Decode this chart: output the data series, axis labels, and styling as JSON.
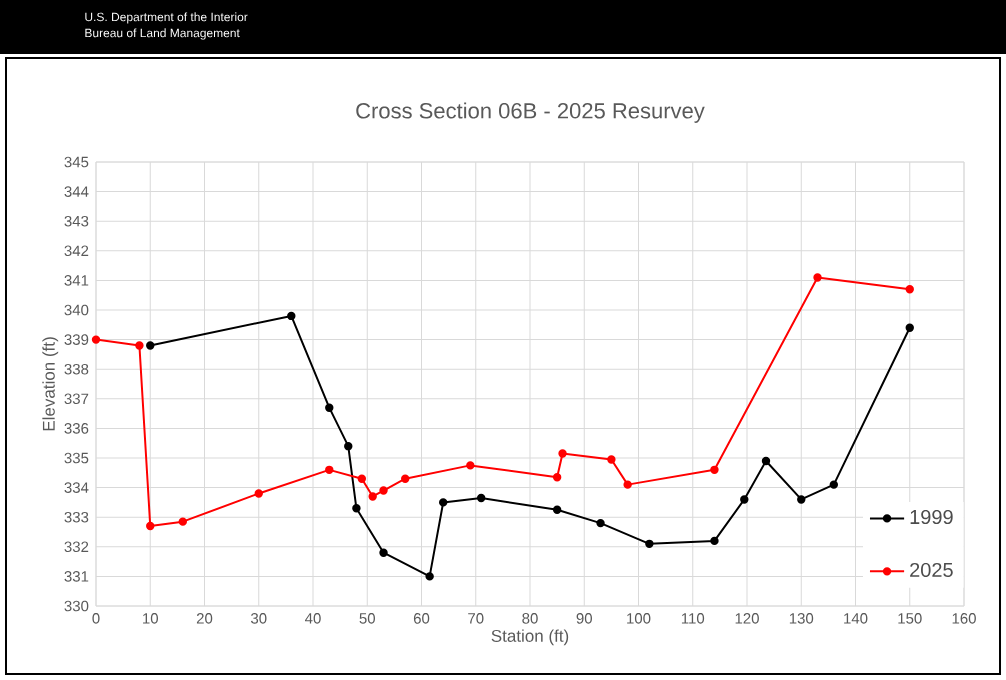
{
  "chart_data": {
    "type": "line",
    "title": "Cross Section 06B - 2025 Resurvey",
    "xlabel": "Station (ft)",
    "ylabel": "Elevation (ft)",
    "annotations": [
      "U.S. Department of the Interior",
      "Bureau of Land Management"
    ],
    "xlim": [
      0,
      160
    ],
    "xticks": [
      0,
      10,
      20,
      30,
      40,
      50,
      60,
      70,
      80,
      90,
      100,
      110,
      120,
      130,
      140,
      150,
      160
    ],
    "ylim": [
      330,
      345
    ],
    "yticks": [
      330,
      331,
      332,
      333,
      334,
      335,
      336,
      337,
      338,
      339,
      340,
      341,
      342,
      343,
      344,
      345
    ],
    "grid": true,
    "legend": "bottom right",
    "marker": "circle",
    "line_style": "solid",
    "series": [
      {
        "name": "1999",
        "color": "#000000",
        "x": [
          10,
          36,
          43,
          46.5,
          48,
          53,
          61.5,
          64,
          71,
          85,
          93,
          102,
          114,
          119.5,
          123.5,
          130,
          136,
          150
        ],
        "values": [
          338.8,
          339.8,
          336.7,
          335.4,
          333.3,
          331.8,
          331.0,
          333.5,
          333.65,
          333.25,
          332.8,
          332.1,
          332.2,
          333.6,
          334.9,
          333.6,
          334.1,
          339.4
        ]
      },
      {
        "name": "2025",
        "color": "#ff0000",
        "x": [
          0,
          8,
          10,
          16,
          30,
          43,
          49,
          51,
          53,
          57,
          69,
          85,
          86,
          95,
          98,
          114,
          133,
          150
        ],
        "values": [
          339.0,
          338.8,
          332.7,
          332.85,
          333.8,
          334.6,
          334.3,
          333.7,
          333.9,
          334.3,
          334.75,
          334.35,
          335.15,
          334.95,
          334.1,
          334.6,
          341.1,
          340.7
        ]
      }
    ]
  }
}
